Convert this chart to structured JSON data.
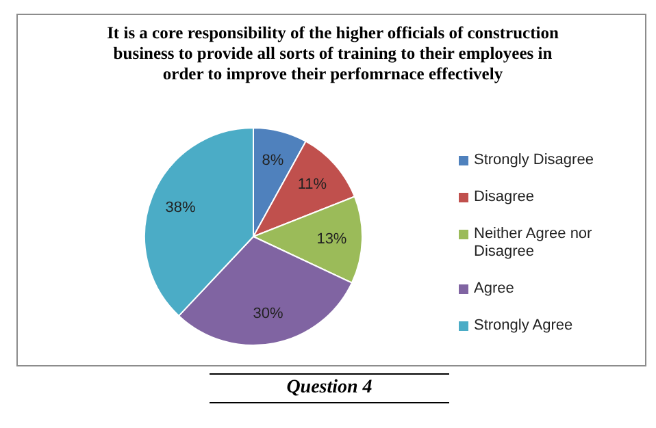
{
  "chart_data": {
    "type": "pie",
    "title": "It is a core responsibility of the higher officials of construction business to provide  all sorts of training to their employees  in order to improve  their perfomrnace  effectively",
    "categories": [
      "Strongly Disagree",
      "Disagree",
      "Neither Agree nor Disagree",
      "Agree",
      "Strongly Agree"
    ],
    "values": [
      8,
      11,
      13,
      30,
      38
    ],
    "colors": [
      "#4f81bd",
      "#c0504d",
      "#9bbb59",
      "#8064a2",
      "#4bacc6"
    ],
    "value_labels": [
      "8%",
      "11%",
      "13%",
      "30%",
      "38%"
    ],
    "legend": "right",
    "annotations": [
      "Question  4"
    ]
  }
}
